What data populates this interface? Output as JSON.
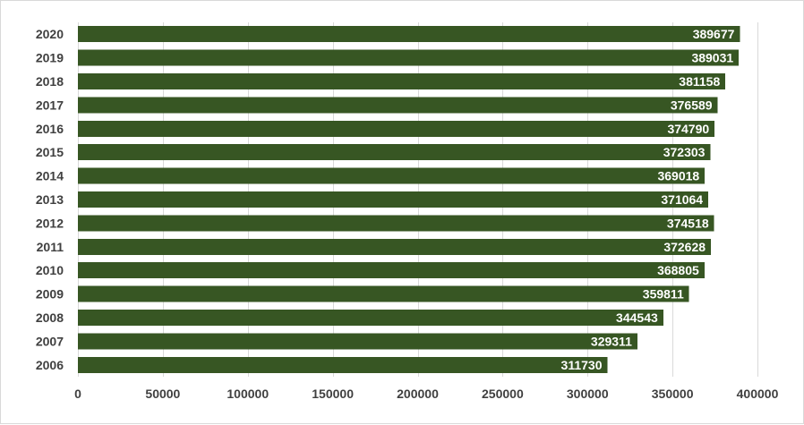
{
  "chart_data": {
    "type": "bar",
    "orientation": "horizontal",
    "categories": [
      "2020",
      "2019",
      "2018",
      "2017",
      "2016",
      "2015",
      "2014",
      "2013",
      "2012",
      "2011",
      "2010",
      "2009",
      "2008",
      "2007",
      "2006"
    ],
    "values": [
      389677,
      389031,
      381158,
      376589,
      374790,
      372303,
      369018,
      371064,
      374518,
      372628,
      368805,
      359811,
      344543,
      329311,
      311730
    ],
    "xlim": [
      0,
      400000
    ],
    "xticks": [
      0,
      50000,
      100000,
      150000,
      200000,
      250000,
      300000,
      350000,
      400000
    ],
    "grid": true,
    "bar_color": "#375623",
    "data_labels": true,
    "title": "",
    "xlabel": "",
    "ylabel": ""
  }
}
